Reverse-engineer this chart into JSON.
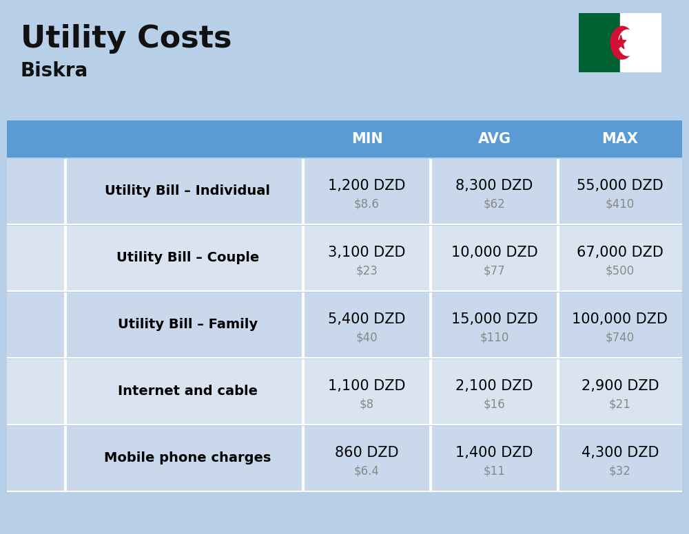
{
  "title": "Utility Costs",
  "subtitle": "Biskra",
  "background_color": "#b8cfe8",
  "header_bg_color": "#5b9bd5",
  "header_text_color": "#ffffff",
  "row_bg_color_1": "#c9d9eb",
  "row_bg_color_2": "#dae4f0",
  "divider_color": "#ffffff",
  "col_header_labels": [
    "MIN",
    "AVG",
    "MAX"
  ],
  "rows": [
    {
      "label": "Utility Bill – Individual",
      "min_dzd": "1,200 DZD",
      "min_usd": "$8.6",
      "avg_dzd": "8,300 DZD",
      "avg_usd": "$62",
      "max_dzd": "55,000 DZD",
      "max_usd": "$410"
    },
    {
      "label": "Utility Bill – Couple",
      "min_dzd": "3,100 DZD",
      "min_usd": "$23",
      "avg_dzd": "10,000 DZD",
      "avg_usd": "$77",
      "max_dzd": "67,000 DZD",
      "max_usd": "$500"
    },
    {
      "label": "Utility Bill – Family",
      "min_dzd": "5,400 DZD",
      "min_usd": "$40",
      "avg_dzd": "15,000 DZD",
      "avg_usd": "$110",
      "max_dzd": "100,000 DZD",
      "max_usd": "$740"
    },
    {
      "label": "Internet and cable",
      "min_dzd": "1,100 DZD",
      "min_usd": "$8",
      "avg_dzd": "2,100 DZD",
      "avg_usd": "$16",
      "max_dzd": "2,900 DZD",
      "max_usd": "$21"
    },
    {
      "label": "Mobile phone charges",
      "min_dzd": "860 DZD",
      "min_usd": "$6.4",
      "avg_dzd": "1,400 DZD",
      "avg_usd": "$11",
      "max_dzd": "4,300 DZD",
      "max_usd": "$32"
    }
  ],
  "title_fontsize": 32,
  "subtitle_fontsize": 20,
  "header_fontsize": 15,
  "label_fontsize": 14,
  "value_fontsize": 15,
  "usd_fontsize": 12,
  "usd_color": "#888888",
  "label_color": "#000000",
  "value_color": "#000000"
}
